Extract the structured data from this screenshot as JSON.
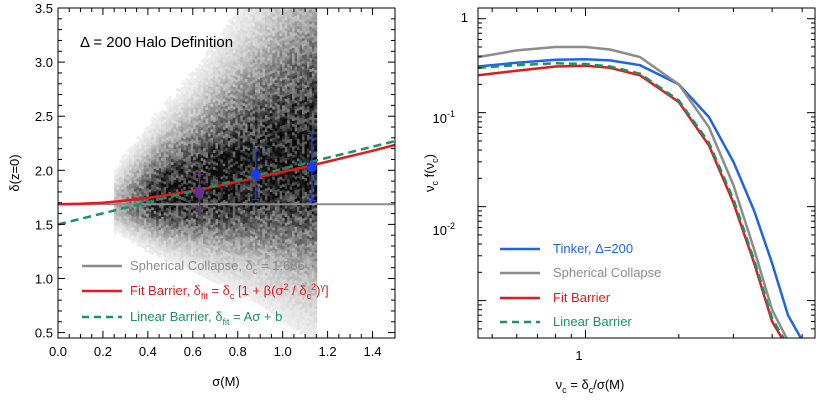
{
  "colors": {
    "gray": "#8c8c8c",
    "red": "#e3191c",
    "green": "#1a9264",
    "blue": "#1e64e6",
    "purple": "#6a2a9a",
    "point_blue": "#1a3cf0",
    "axis": "#000000"
  },
  "chart_data": [
    {
      "type": "scatter",
      "title": "Δ = 200 Halo Definition",
      "xlabel": "σ(M)",
      "ylabel": "δ(z=0)",
      "xlim": [
        0.0,
        1.5
      ],
      "ylim": [
        0.45,
        3.5
      ],
      "xticks": [
        0.0,
        0.2,
        0.4,
        0.6,
        0.8,
        1.0,
        1.2,
        1.4
      ],
      "xtick_labels": [
        "0.0",
        "0.2",
        "0.4",
        "0.6",
        "0.8",
        "1.0",
        "1.2",
        "1.4"
      ],
      "yticks": [
        0.5,
        1.0,
        1.5,
        2.0,
        2.5,
        3.0,
        3.5
      ],
      "ytick_labels": [
        "0.5",
        "1.0",
        "1.5",
        "2.0",
        "2.5",
        "3.0",
        "3.5"
      ],
      "series": [
        {
          "name": "Spherical Collapse",
          "legend_label": "Spherical Collapse, δc = 1.686",
          "kind": "hline",
          "value": 1.686,
          "color_key": "gray"
        },
        {
          "name": "Fit Barrier",
          "legend_label": "Fit Barrier, δfit = δc [1 + β(σ² / δc²)^γ]",
          "kind": "curve",
          "x": [
            0.0,
            0.1,
            0.2,
            0.3,
            0.4,
            0.5,
            0.6,
            0.7,
            0.8,
            0.9,
            1.0,
            1.1,
            1.2,
            1.3,
            1.4,
            1.5
          ],
          "y": [
            1.686,
            1.69,
            1.7,
            1.72,
            1.745,
            1.775,
            1.81,
            1.85,
            1.895,
            1.94,
            1.985,
            2.03,
            2.08,
            2.13,
            2.18,
            2.235
          ],
          "color_key": "red"
        },
        {
          "name": "Linear Barrier",
          "legend_label": "Linear Barrier, δfit = Aσ + b",
          "kind": "line",
          "x": [
            0.0,
            1.5
          ],
          "y": [
            1.5,
            2.27
          ],
          "color_key": "green"
        }
      ],
      "points": [
        {
          "x": 0.63,
          "y": 1.8,
          "err": 0.16,
          "color_key": "purple"
        },
        {
          "x": 0.88,
          "y": 1.96,
          "err": 0.23,
          "color_key": "point_blue"
        },
        {
          "x": 1.13,
          "y": 2.03,
          "err": 0.31,
          "color_key": "point_blue"
        }
      ],
      "density": {
        "description": "grayscale 2D histogram of halo barrier heights",
        "x_range": [
          0.25,
          1.15
        ],
        "y_median_at_x": [
          [
            0.25,
            1.65
          ],
          [
            0.6,
            1.78
          ],
          [
            0.9,
            1.95
          ],
          [
            1.15,
            2.05
          ]
        ],
        "y_spread_at_x": [
          [
            0.25,
            0.12
          ],
          [
            0.6,
            0.3
          ],
          [
            0.9,
            0.5
          ],
          [
            1.15,
            0.7
          ]
        ]
      }
    },
    {
      "type": "line",
      "xlabel": "νc = δc/σ(M)",
      "ylabel": "νc f(νc)",
      "xscale": "log",
      "yscale": "log",
      "xlim": [
        0.45,
        5.5
      ],
      "ylim": [
        0.0004,
        1.3
      ],
      "xticks": [
        1
      ],
      "xtick_labels": [
        "1"
      ],
      "yticks": [
        0.01,
        0.1,
        1
      ],
      "ytick_labels": [
        "10-2",
        "10-1",
        "1"
      ],
      "series": [
        {
          "name": "Tinker, Δ=200",
          "color_key": "blue",
          "dash": false,
          "x": [
            0.45,
            0.6,
            0.8,
            1.0,
            1.2,
            1.5,
            2.0,
            2.5,
            3.0,
            3.5,
            4.0,
            4.5,
            4.95
          ],
          "y": [
            0.31,
            0.34,
            0.365,
            0.37,
            0.36,
            0.32,
            0.2,
            0.09,
            0.03,
            0.009,
            0.0025,
            0.0007,
            0.0004
          ]
        },
        {
          "name": "Spherical Collapse",
          "color_key": "gray",
          "dash": false,
          "x": [
            0.45,
            0.6,
            0.8,
            1.0,
            1.2,
            1.5,
            2.0,
            2.5,
            3.0,
            3.5,
            4.0,
            4.45
          ],
          "y": [
            0.39,
            0.46,
            0.5,
            0.5,
            0.47,
            0.39,
            0.2,
            0.07,
            0.017,
            0.0035,
            0.0008,
            0.0004
          ]
        },
        {
          "name": "Fit Barrier",
          "color_key": "red",
          "dash": false,
          "x": [
            0.45,
            0.6,
            0.8,
            1.0,
            1.2,
            1.5,
            2.0,
            2.5,
            3.0,
            3.5,
            4.0,
            4.3
          ],
          "y": [
            0.25,
            0.28,
            0.31,
            0.315,
            0.3,
            0.25,
            0.13,
            0.045,
            0.011,
            0.0025,
            0.0006,
            0.0004
          ]
        },
        {
          "name": "Linear Barrier",
          "color_key": "green",
          "dash": true,
          "x": [
            0.45,
            0.6,
            0.8,
            1.0,
            1.2,
            1.5,
            2.0,
            2.5,
            3.0,
            3.5,
            4.0,
            4.35
          ],
          "y": [
            0.3,
            0.32,
            0.335,
            0.33,
            0.31,
            0.26,
            0.135,
            0.048,
            0.012,
            0.0027,
            0.00065,
            0.0004
          ]
        }
      ]
    }
  ],
  "left_chart": {
    "title": "Δ = 200 Halo Definition",
    "xlabel": "σ(M)",
    "ylabel": "δ(z=0)",
    "legend": {
      "sc_text": "Spherical Collapse, δ",
      "sc_sub": "c",
      "sc_rest": " = 1.686",
      "fit_text": "Fit Barrier, δ",
      "fit_sub": "fit",
      "fit_mid": " = δ",
      "fit_sub2": "c",
      "fit_rest1": " [1 + β(σ",
      "fit_sup1": "2",
      "fit_rest2": " / δ",
      "fit_sub3": "c",
      "fit_sup2": "2",
      "fit_rest3": ")",
      "fit_sup3": "γ",
      "fit_rest4": "]",
      "lin_text": "Linear Barrier, δ",
      "lin_sub": "fit",
      "lin_rest": " = Aσ + b"
    }
  },
  "right_chart": {
    "xlabel_main": "ν",
    "xlabel_sub": "c",
    "xlabel_mid": " = δ",
    "xlabel_sub2": "c",
    "xlabel_rest": "/σ(M)",
    "ylabel_main": "ν",
    "ylabel_sub": "c",
    "ylabel_mid": " f(ν",
    "ylabel_sub2": "c",
    "ylabel_rest": ")",
    "tick_base": "10",
    "tick_exp_m2": "-2",
    "tick_exp_m1": "-1",
    "tick_one": "1",
    "legend": [
      "Tinker, Δ=200",
      "Spherical Collapse",
      "Fit Barrier",
      "Linear Barrier"
    ]
  }
}
